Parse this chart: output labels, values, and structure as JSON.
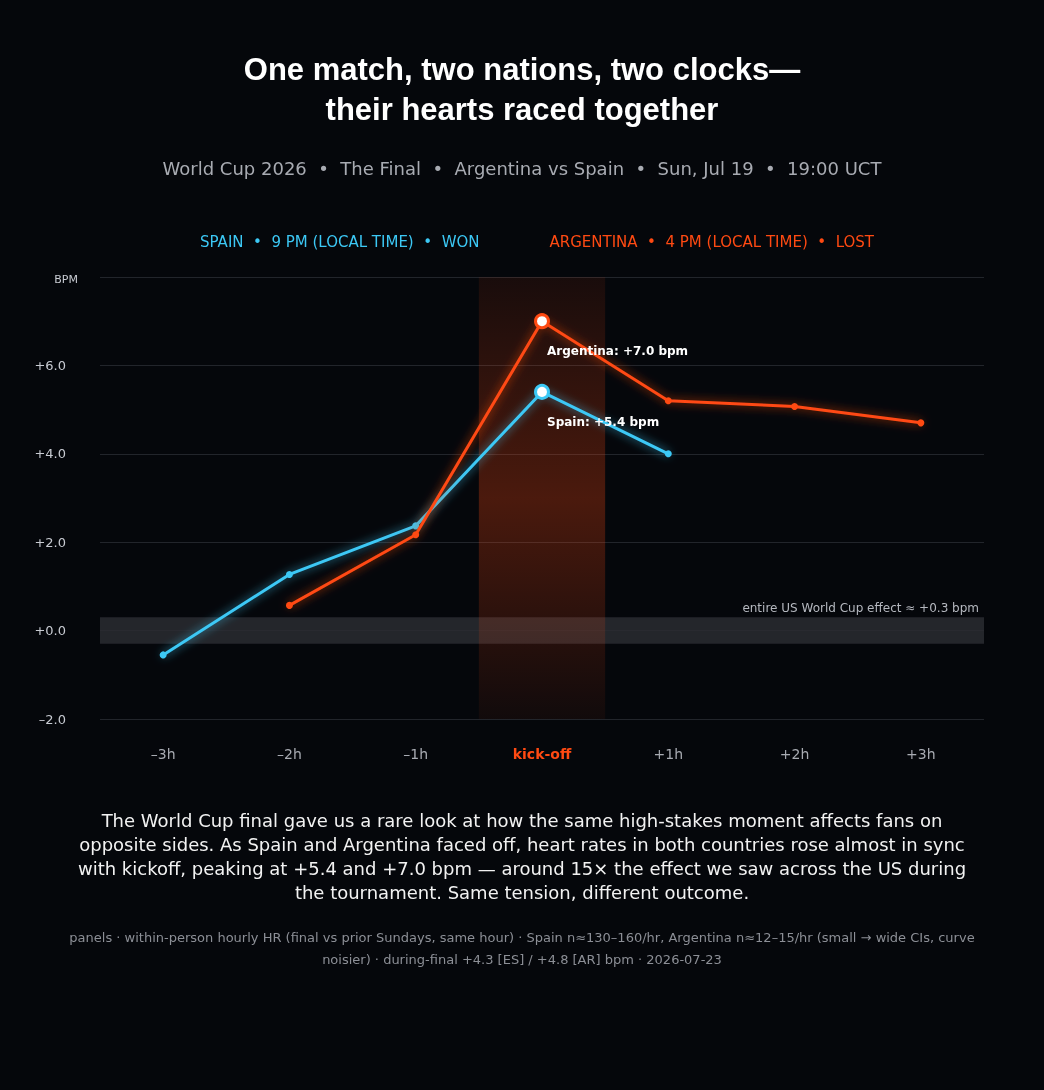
{
  "chart_data": {
    "type": "line",
    "title": "One match, two nations, two clocks—\ntheir hearts raced together",
    "subtitle": "World Cup 2026  •  The Final  •  Argentina vs Spain  •  Sun, Jul 19  •  19:00 UCT",
    "ylabel": "BPM",
    "categories": [
      "–3h",
      "–2h",
      "–1h",
      "kick-off",
      "+1h",
      "+2h",
      "+3h"
    ],
    "series": [
      {
        "name": "SPAIN  •  9 PM (LOCAL TIME)  •  WON",
        "color": "#3cc8f5",
        "values": [
          -0.55,
          1.27,
          2.37,
          5.4,
          4.0,
          null,
          null
        ]
      },
      {
        "name": "ARGENTINA  •  4 PM (LOCAL TIME)  •  LOST",
        "color": "#ff4a12",
        "values": [
          null,
          0.57,
          2.17,
          7.0,
          5.2,
          5.07,
          4.7
        ]
      }
    ],
    "ylim": [
      -2,
      8
    ],
    "yticks": [
      {
        "value": -2,
        "label": "–2.0"
      },
      {
        "value": 0,
        "label": "+0.0"
      },
      {
        "value": 2,
        "label": "+2.0"
      },
      {
        "value": 4,
        "label": "+4.0"
      },
      {
        "value": 6,
        "label": "+6.0"
      },
      {
        "value": 8,
        "label": null
      }
    ],
    "bands": [
      {
        "axis": "x",
        "from": "kick-off",
        "to": "kick-off",
        "color": "#ff4a12"
      },
      {
        "axis": "y",
        "from": -0.3,
        "to": 0.3,
        "label": "entire US World Cup effect ≈ +0.3 bpm",
        "color": "#2a2c31"
      }
    ],
    "annotations": [
      {
        "text": "Argentina: +7.0 bpm",
        "x": "kick-off",
        "y": 7.0
      },
      {
        "text": "Spain: +5.4 bpm",
        "x": "kick-off",
        "y": 5.4
      },
      "The World Cup final gave us a rare look at how the same high-stakes moment affects fans on opposite sides. As Spain and Argentina faced off, heart rates in both countries rose almost in sync with kickoff, peaking at +5.4 and +7.0 bpm — around 15× the effect we saw across the US during the tournament. Same tension, different outcome.",
      "panels · within-person hourly HR (final vs prior Sundays, same hour) · Spain n≈130–160/hr, Argentina n≈12–15/hr (small → wide CIs, curve noisier) · during-final +4.3 [ES] / +4.8 [AR] bpm · 2026-07-23"
    ],
    "grid": "y",
    "legend": "top",
    "marker": "circle",
    "line_style": "solid"
  }
}
